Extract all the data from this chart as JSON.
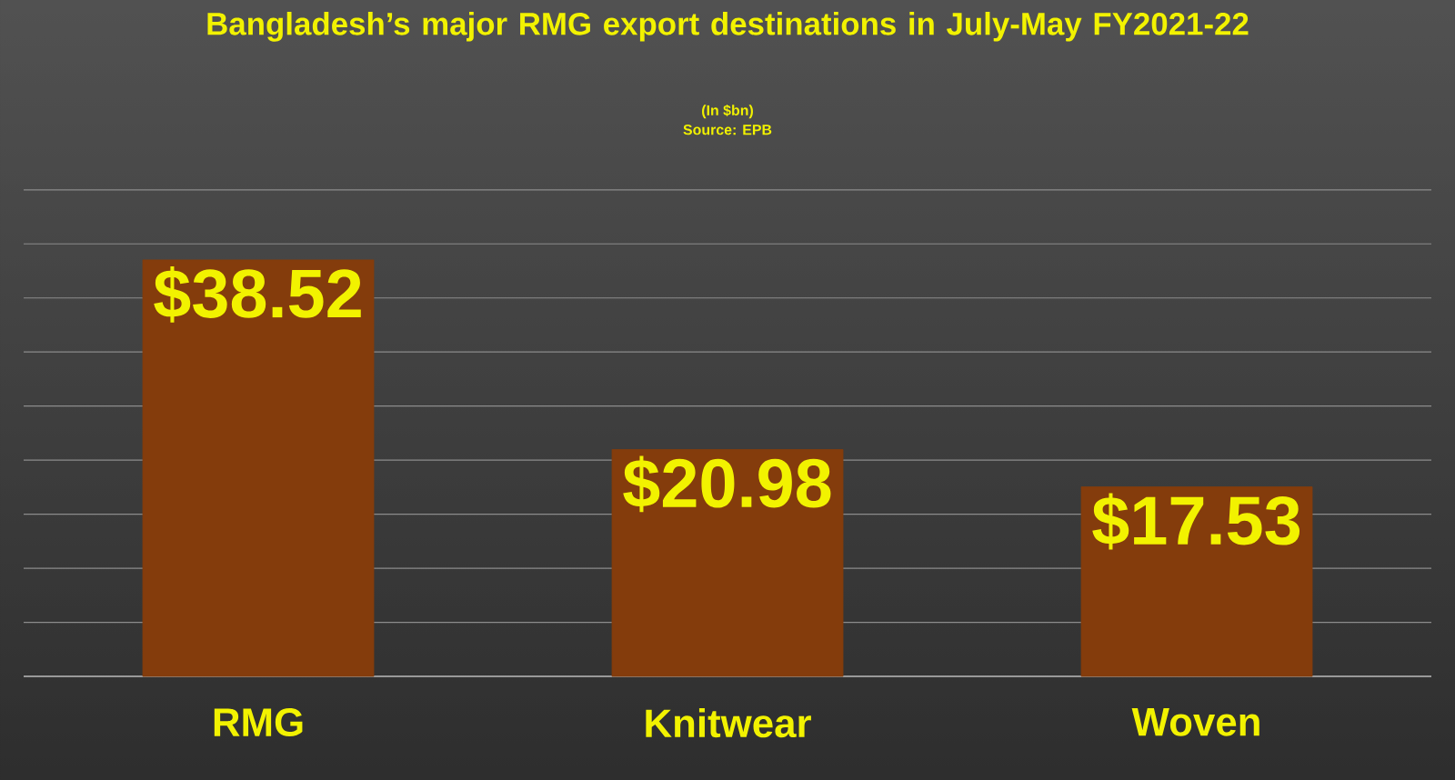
{
  "chart_data": {
    "type": "bar",
    "title": "Bangladesh’s major RMG export destinations in July-May FY2021-22",
    "subtitle": "(In $bn)",
    "annotations": [
      "Source: EPB"
    ],
    "categories": [
      "RMG",
      "Knitwear",
      "Woven"
    ],
    "values": [
      38.52,
      20.98,
      17.53
    ],
    "value_labels": [
      "$38.52",
      "$20.98",
      "$17.53"
    ],
    "color": "#843c0c",
    "tick_labels": "x",
    "grid": "y"
  }
}
